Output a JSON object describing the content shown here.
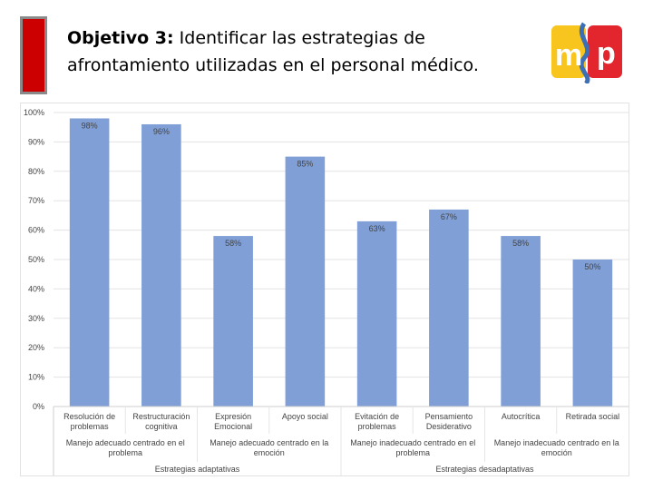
{
  "slide": {
    "title_bold": "Objetivo 3:",
    "title_rest": " Identificar las estrategias de afrontamiento utilizadas en el personal médico."
  },
  "logo": {
    "text_left": "m",
    "text_right": "p",
    "colors": [
      "#f7c51e",
      "#e3262d",
      "#3b6fb6"
    ]
  },
  "colors": {
    "accent": "#cc0000",
    "bar": "#7f9fd6",
    "grid": "#e3e3e3",
    "axis_text": "#444444"
  },
  "chart_data": {
    "type": "bar",
    "title": "",
    "ylim": [
      0,
      100
    ],
    "y_ticks": [
      "0%",
      "10%",
      "20%",
      "30%",
      "40%",
      "50%",
      "60%",
      "70%",
      "80%",
      "90%",
      "100%"
    ],
    "categories": [
      [
        "Resolución de",
        "problemas"
      ],
      [
        "Restructuración",
        "cognitiva"
      ],
      [
        "Expresión",
        "Emocional"
      ],
      [
        "Apoyo social"
      ],
      [
        "Evitación de",
        "problemas"
      ],
      [
        "Pensamiento",
        "Desiderativo"
      ],
      [
        "Autocrítica"
      ],
      [
        "Retirada social"
      ]
    ],
    "values": [
      98,
      96,
      58,
      85,
      63,
      67,
      58,
      50
    ],
    "value_labels": [
      "98%",
      "96%",
      "58%",
      "85%",
      "63%",
      "67%",
      "58%",
      "50%"
    ],
    "groups_level2": [
      {
        "label": [
          "Manejo adecuado centrado en el",
          "problema"
        ],
        "span": [
          0,
          1
        ]
      },
      {
        "label": [
          "Manejo adecuado centrado en la",
          "emoción"
        ],
        "span": [
          2,
          3
        ]
      },
      {
        "label": [
          "Manejo inadecuado centrado en el",
          "problema"
        ],
        "span": [
          4,
          5
        ]
      },
      {
        "label": [
          "Manejo inadecuado centrado en la",
          "emoción"
        ],
        "span": [
          6,
          7
        ]
      }
    ],
    "groups_level1": [
      {
        "label": "Estrategias adaptativas",
        "span": [
          0,
          3
        ]
      },
      {
        "label": "Estrategias desadaptativas",
        "span": [
          4,
          7
        ]
      }
    ]
  }
}
